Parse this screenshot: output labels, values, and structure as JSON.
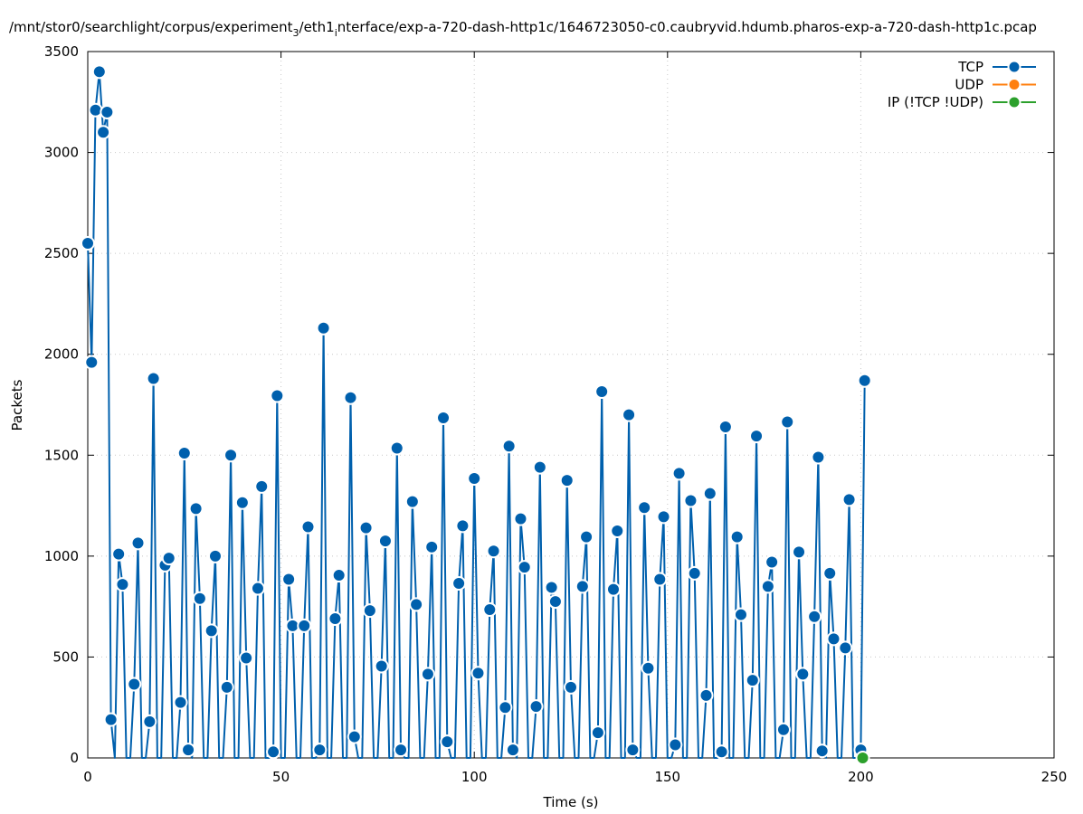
{
  "chart_data": {
    "type": "line",
    "title": "/mnt/stor0/searchlight/corpus/experiment_3/eth1_interface/exp-a-720-dash-http1c/1646723050-c0.caubryvid.hdumb.pharos-exp-a-720-dash-http1c.pcap",
    "title_parts": {
      "p1": "/mnt/stor0/searchlight/corpus/experiment",
      "sub1": "3",
      "p2": "/eth1",
      "sub2": "i",
      "p3": "nterface/exp-a-720-dash-http1c/1646723050-c0.caubryvid.hdumb.pharos-exp-a-720-dash-http1c.pcap"
    },
    "xlabel": "Time (s)",
    "ylabel": "Packets",
    "xlim": [
      0,
      250
    ],
    "ylim": [
      0,
      3500
    ],
    "xticks": [
      0,
      50,
      100,
      150,
      200,
      250
    ],
    "yticks": [
      0,
      500,
      1000,
      1500,
      2000,
      2500,
      3000,
      3500
    ],
    "grid": true,
    "legend_position": "top-right",
    "series": [
      {
        "name": "TCP",
        "color": "#0060ad",
        "x": [
          0,
          1,
          2,
          3,
          4,
          5,
          6,
          7,
          8,
          9,
          10,
          11,
          12,
          13,
          14,
          15,
          16,
          17,
          18,
          19,
          20,
          21,
          22,
          23,
          24,
          25,
          26,
          27,
          28,
          29,
          30,
          31,
          32,
          33,
          34,
          35,
          36,
          37,
          38,
          39,
          40,
          41,
          42,
          43,
          44,
          45,
          46,
          47,
          48,
          49,
          50,
          51,
          52,
          53,
          54,
          55,
          56,
          57,
          58,
          59,
          60,
          61,
          62,
          63,
          64,
          65,
          66,
          67,
          68,
          69,
          70,
          71,
          72,
          73,
          74,
          75,
          76,
          77,
          78,
          79,
          80,
          81,
          82,
          83,
          84,
          85,
          86,
          87,
          88,
          89,
          90,
          91,
          92,
          93,
          94,
          95,
          96,
          97,
          98,
          99,
          100,
          101,
          102,
          103,
          104,
          105,
          106,
          107,
          108,
          109,
          110,
          111,
          112,
          113,
          114,
          115,
          116,
          117,
          118,
          119,
          120,
          121,
          122,
          123,
          124,
          125,
          126,
          127,
          128,
          129,
          130,
          131,
          132,
          133,
          134,
          135,
          136,
          137,
          138,
          139,
          140,
          141,
          142,
          143,
          144,
          145,
          146,
          147,
          148,
          149,
          150,
          151,
          152,
          153,
          154,
          155,
          156,
          157,
          158,
          159,
          160,
          161,
          162,
          163,
          164,
          165,
          166,
          167,
          168,
          169,
          170,
          171,
          172,
          173,
          174,
          175,
          176,
          177,
          178,
          179,
          180,
          181,
          182,
          183,
          184,
          185,
          186,
          187,
          188,
          189,
          190,
          191,
          192,
          193,
          194,
          195,
          196,
          197,
          198,
          199,
          200,
          201
        ],
        "y": [
          2550,
          1960,
          3210,
          3400,
          3100,
          3200,
          190,
          0,
          1010,
          860,
          0,
          0,
          365,
          1065,
          0,
          0,
          180,
          1880,
          0,
          0,
          955,
          990,
          0,
          0,
          275,
          1510,
          40,
          0,
          1235,
          790,
          0,
          0,
          630,
          1000,
          0,
          0,
          350,
          1500,
          0,
          0,
          1265,
          495,
          0,
          0,
          840,
          1345,
          0,
          0,
          30,
          1795,
          0,
          0,
          885,
          655,
          0,
          0,
          655,
          1145,
          0,
          0,
          40,
          2130,
          0,
          0,
          690,
          905,
          0,
          0,
          1785,
          105,
          0,
          0,
          1140,
          730,
          0,
          0,
          455,
          1075,
          0,
          0,
          1535,
          40,
          0,
          0,
          1270,
          760,
          0,
          0,
          415,
          1045,
          0,
          0,
          1685,
          80,
          0,
          0,
          865,
          1150,
          0,
          0,
          1385,
          420,
          0,
          0,
          735,
          1025,
          0,
          0,
          250,
          1545,
          40,
          0,
          1185,
          945,
          0,
          0,
          255,
          1440,
          0,
          0,
          845,
          775,
          0,
          0,
          1375,
          350,
          0,
          0,
          850,
          1095,
          0,
          0,
          125,
          1815,
          0,
          0,
          835,
          1125,
          0,
          0,
          1700,
          40,
          0,
          0,
          1240,
          445,
          0,
          0,
          885,
          1195,
          0,
          0,
          65,
          1410,
          0,
          0,
          1275,
          915,
          0,
          0,
          310,
          1310,
          0,
          0,
          30,
          1640,
          0,
          0,
          1095,
          710,
          0,
          0,
          385,
          1595,
          0,
          0,
          850,
          970,
          0,
          0,
          140,
          1665,
          0,
          0,
          1020,
          415,
          0,
          0,
          700,
          1490,
          35,
          0,
          915,
          590,
          0,
          0,
          545,
          1280,
          0,
          0,
          40,
          1870
        ]
      },
      {
        "name": "UDP",
        "color": "#ff7f0e",
        "x": [],
        "y": []
      },
      {
        "name": "IP (!TCP  !UDP)",
        "color": "#2ca02c",
        "x": [
          200.5
        ],
        "y": [
          0
        ]
      }
    ]
  }
}
